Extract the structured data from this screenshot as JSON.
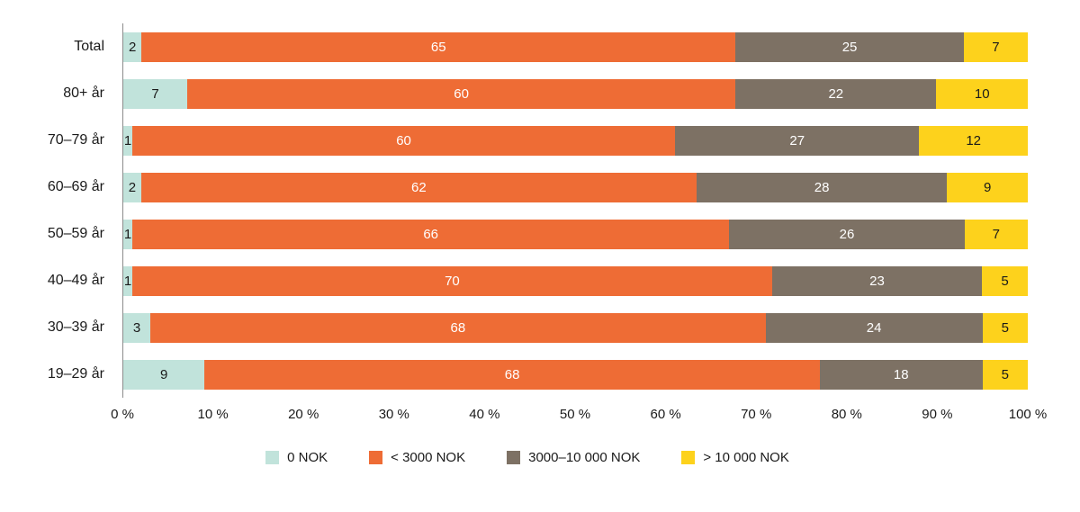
{
  "chart_data": {
    "type": "bar",
    "orientation": "horizontal",
    "stacked": true,
    "title": "",
    "xlabel": "",
    "ylabel": "",
    "xlim": [
      0,
      100
    ],
    "grid": false,
    "legend_position": "bottom",
    "categories": [
      "Total",
      "80+ år",
      "70–79 år",
      "60–69 år",
      "50–59 år",
      "40–49 år",
      "30–39 år",
      "19–29 år"
    ],
    "series": [
      {
        "name": "0 NOK",
        "color": "#c1e3db",
        "text_color": "#1a1a1a",
        "values": [
          2,
          7,
          1,
          2,
          1,
          1,
          3,
          9
        ]
      },
      {
        "name": "< 3000 NOK",
        "color": "#ee6c35",
        "text_color": "#ffffff",
        "values": [
          65,
          60,
          60,
          62,
          66,
          70,
          68,
          68
        ]
      },
      {
        "name": "3000–10 000 NOK",
        "color": "#7d7164",
        "text_color": "#ffffff",
        "values": [
          25,
          22,
          27,
          28,
          26,
          23,
          24,
          18
        ]
      },
      {
        "name": "> 10 000 NOK",
        "color": "#fdd21c",
        "text_color": "#1a1a1a",
        "values": [
          7,
          10,
          12,
          9,
          7,
          5,
          5,
          5
        ]
      }
    ],
    "x_ticks": [
      "0 %",
      "10 %",
      "20 %",
      "30 %",
      "40 %",
      "50 %",
      "60 %",
      "70 %",
      "80 %",
      "90 %",
      "100 %"
    ]
  }
}
